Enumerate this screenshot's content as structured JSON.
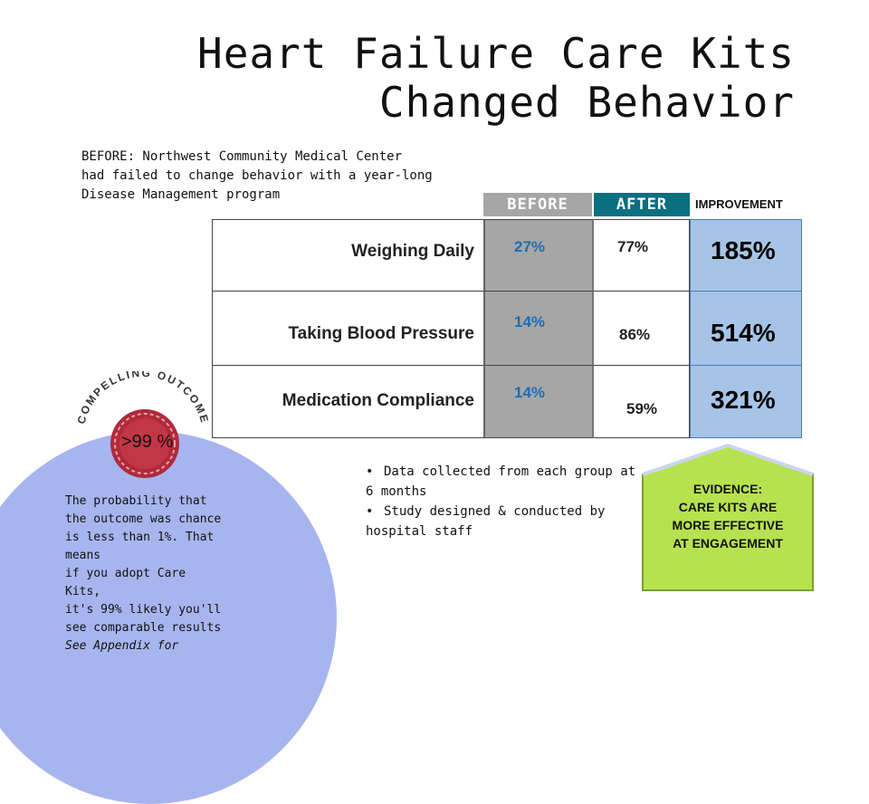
{
  "title": {
    "line1": "Heart Failure Care Kits",
    "line2": "Changed Behavior"
  },
  "intro": "BEFORE: Northwest Community Medical Center\nhad failed to change behavior with a year-long\nDisease Management program",
  "table": {
    "headers": {
      "before": "BEFORE",
      "after": "AFTER",
      "improvement": "IMPROVEMENT"
    },
    "rows": [
      {
        "label": "Weighing Daily",
        "before": "27%",
        "after": "77%",
        "improvement": "185%"
      },
      {
        "label": "Taking Blood Pressure",
        "before": "14%",
        "after": "86%",
        "improvement": "514%"
      },
      {
        "label": "Medication Compliance",
        "before": "14%",
        "after": "59%",
        "improvement": "321%"
      }
    ]
  },
  "bullets": [
    "Data collected from each group at 6 months",
    "Study designed & conducted by hospital staff"
  ],
  "evidence": {
    "line1": "EVIDENCE:",
    "line2": "CARE KITS ARE",
    "line3": "MORE EFFECTIVE",
    "line4": "AT ENGAGEMENT"
  },
  "outcome": {
    "seal_label": "COMPELLING OUTCOME",
    "seal_value": ">99 %",
    "text": "The probability that\nthe outcome was chance\nis less than 1%. That\nmeans\nif you adopt Care\nKits,\nit's 99% likely you'll\nsee comparable results",
    "reference": "See Appendix for"
  },
  "colors": {
    "before_header": "#a6a6a6",
    "after_header": "#0a6f80",
    "improvement_cell": "#a6c4e6",
    "evidence_fill": "#b7e24f",
    "circle_fill": "#a7b5ee",
    "seal_ribbon": "#b02a3a"
  }
}
